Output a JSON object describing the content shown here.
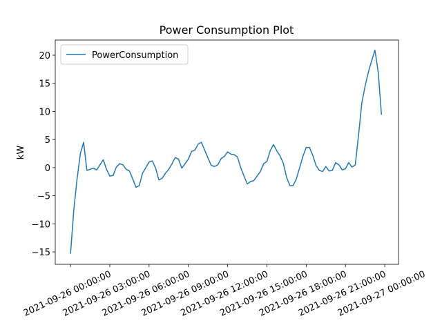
{
  "chart_data": {
    "type": "line",
    "title": "Power Consumption Plot",
    "y_label": "kW",
    "x": [
      "2021-09-26 00:00:00",
      "2021-09-26 00:15:00",
      "2021-09-26 00:30:00",
      "2021-09-26 00:45:00",
      "2021-09-26 01:00:00",
      "2021-09-26 01:15:00",
      "2021-09-26 01:30:00",
      "2021-09-26 01:45:00",
      "2021-09-26 02:00:00",
      "2021-09-26 02:15:00",
      "2021-09-26 02:30:00",
      "2021-09-26 02:45:00",
      "2021-09-26 03:00:00",
      "2021-09-26 03:15:00",
      "2021-09-26 03:30:00",
      "2021-09-26 03:45:00",
      "2021-09-26 04:00:00",
      "2021-09-26 04:15:00",
      "2021-09-26 04:30:00",
      "2021-09-26 04:45:00",
      "2021-09-26 05:00:00",
      "2021-09-26 05:15:00",
      "2021-09-26 05:30:00",
      "2021-09-26 05:45:00",
      "2021-09-26 06:00:00",
      "2021-09-26 06:15:00",
      "2021-09-26 06:30:00",
      "2021-09-26 06:45:00",
      "2021-09-26 07:00:00",
      "2021-09-26 07:15:00",
      "2021-09-26 07:30:00",
      "2021-09-26 07:45:00",
      "2021-09-26 08:00:00",
      "2021-09-26 08:15:00",
      "2021-09-26 08:30:00",
      "2021-09-26 08:45:00",
      "2021-09-26 09:00:00",
      "2021-09-26 09:15:00",
      "2021-09-26 09:30:00",
      "2021-09-26 09:45:00",
      "2021-09-26 10:00:00",
      "2021-09-26 10:15:00",
      "2021-09-26 10:30:00",
      "2021-09-26 10:45:00",
      "2021-09-26 11:00:00",
      "2021-09-26 11:15:00",
      "2021-09-26 11:30:00",
      "2021-09-26 11:45:00",
      "2021-09-26 12:00:00",
      "2021-09-26 12:15:00",
      "2021-09-26 12:30:00",
      "2021-09-26 12:45:00",
      "2021-09-26 13:00:00",
      "2021-09-26 13:15:00",
      "2021-09-26 13:30:00",
      "2021-09-26 13:45:00",
      "2021-09-26 14:00:00",
      "2021-09-26 14:15:00",
      "2021-09-26 14:30:00",
      "2021-09-26 14:45:00",
      "2021-09-26 15:00:00",
      "2021-09-26 15:15:00",
      "2021-09-26 15:30:00",
      "2021-09-26 15:45:00",
      "2021-09-26 16:00:00",
      "2021-09-26 16:15:00",
      "2021-09-26 16:30:00",
      "2021-09-26 16:45:00",
      "2021-09-26 17:00:00",
      "2021-09-26 17:15:00",
      "2021-09-26 17:30:00",
      "2021-09-26 17:45:00",
      "2021-09-26 18:00:00",
      "2021-09-26 18:15:00",
      "2021-09-26 18:30:00",
      "2021-09-26 18:45:00",
      "2021-09-26 19:00:00",
      "2021-09-26 19:15:00",
      "2021-09-26 19:30:00",
      "2021-09-26 19:45:00",
      "2021-09-26 20:00:00",
      "2021-09-26 20:15:00",
      "2021-09-26 20:30:00",
      "2021-09-26 20:45:00",
      "2021-09-26 21:00:00",
      "2021-09-26 21:15:00",
      "2021-09-26 21:30:00",
      "2021-09-26 21:45:00",
      "2021-09-26 22:00:00",
      "2021-09-26 22:15:00",
      "2021-09-26 22:30:00",
      "2021-09-26 22:45:00",
      "2021-09-26 23:00:00",
      "2021-09-26 23:15:00",
      "2021-09-26 23:30:00",
      "2021-09-26 23:45:00"
    ],
    "series": [
      {
        "name": "PowerConsumption",
        "color": "#1f77b4",
        "values": [
          -15.3,
          -7.5,
          -2,
          2.5,
          4.5,
          -0.5,
          -0.3,
          -0.1,
          -0.4,
          0.5,
          1.4,
          -0.3,
          -1.5,
          -1.4,
          0.1,
          0.7,
          0.5,
          -0.3,
          -0.6,
          -2,
          -3.5,
          -3.2,
          -1,
          0,
          1,
          1.2,
          -0.1,
          -2.2,
          -1.9,
          -1,
          -0.3,
          0.7,
          1.8,
          1.5,
          -0.1,
          0.7,
          1.5,
          2.9,
          3.1,
          4.2,
          4.5,
          3.1,
          1.7,
          0.4,
          0.2,
          0.5,
          1.6,
          2,
          2.8,
          2.4,
          2.3,
          1.9,
          0,
          -1.5,
          -2.9,
          -2.5,
          -2.3,
          -1.5,
          -0.7,
          0.7,
          1.1,
          3,
          4.1,
          3,
          2.1,
          0.8,
          -1.7,
          -3.2,
          -3.2,
          -2,
          0,
          2,
          3.6,
          3.6,
          2.2,
          0.4,
          -0.5,
          -0.7,
          0.2,
          -0.6,
          -0.5,
          0.9,
          0.5,
          -0.4,
          -0.2,
          0.9,
          0.1,
          0.5,
          5.8,
          11.5,
          14.5,
          17,
          19,
          20.9,
          17,
          9.4
        ]
      }
    ],
    "xlim": [
      "2021-09-25 22:50:00",
      "2021-09-27 01:03:00"
    ],
    "xticks": [
      "2021-09-26 00:00:00",
      "2021-09-26 03:00:00",
      "2021-09-26 06:00:00",
      "2021-09-26 09:00:00",
      "2021-09-26 12:00:00",
      "2021-09-26 15:00:00",
      "2021-09-26 18:00:00",
      "2021-09-26 21:00:00",
      "2021-09-27 00:00:00"
    ],
    "ylim": [
      -17.2,
      22.7
    ],
    "yticks": [
      {
        "value": -15,
        "label": "−15"
      },
      {
        "value": -10,
        "label": "−10"
      },
      {
        "value": -5,
        "label": "−5"
      },
      0,
      5,
      10,
      15,
      20
    ],
    "legend": "upper left"
  }
}
